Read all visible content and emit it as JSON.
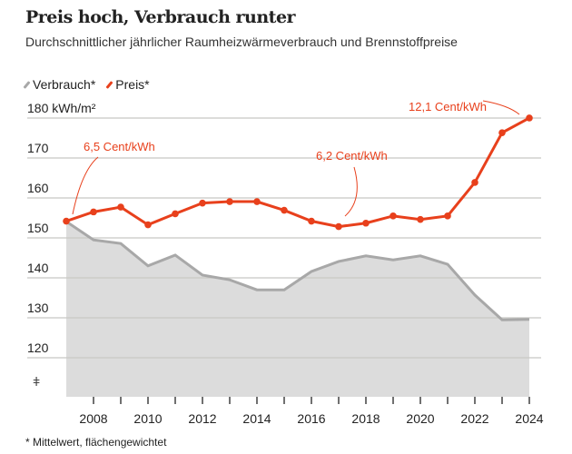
{
  "header": {
    "title": "Preis hoch, Verbrauch runter",
    "subtitle": "Durchschnittlicher jährlicher Raumheizwärmeverbrauch und Brennstoffpreise"
  },
  "footnote": "* Mittelwert, flächengewichtet",
  "colors": {
    "consumption": "#a8a8a8",
    "area": "#dcdcdc",
    "price": "#e8401c",
    "grid": "#c8c8c4"
  },
  "chart_data": {
    "type": "line",
    "title": "Preis hoch, Verbrauch runter",
    "ylabel": "180 kWh/m²",
    "ylim": [
      110,
      180
    ],
    "yticks": [
      {
        "v": 180,
        "label": "180 kWh/m²"
      },
      {
        "v": 170,
        "label": "170"
      },
      {
        "v": 160,
        "label": "160"
      },
      {
        "v": 150,
        "label": "150"
      },
      {
        "v": 140,
        "label": "140"
      },
      {
        "v": 130,
        "label": "130"
      },
      {
        "v": 120,
        "label": "120"
      }
    ],
    "axis_break": "ǂ",
    "x": [
      2007,
      2008,
      2009,
      2010,
      2011,
      2012,
      2013,
      2014,
      2015,
      2016,
      2017,
      2018,
      2019,
      2020,
      2021,
      2022,
      2023,
      2024
    ],
    "xticks": [
      "2008",
      "2010",
      "2012",
      "2014",
      "2016",
      "2018",
      "2020",
      "2022",
      "2024"
    ],
    "legend": [
      "Verbrauch*",
      "Preis*"
    ],
    "series": [
      {
        "name": "Verbrauch*",
        "unit": "kWh/m²",
        "values": [
          154.1,
          149.5,
          148.6,
          143,
          145.7,
          140.7,
          139.5,
          137,
          137,
          141.6,
          144.1,
          145.5,
          144.5,
          145.5,
          143.4,
          135.7,
          129.5,
          129.6
        ]
      },
      {
        "name": "Preis*",
        "unit": "Cent/kWh",
        "values": [
          6.5,
          7.0,
          7.26,
          6.3,
          6.9,
          7.48,
          7.56,
          7.56,
          7.09,
          6.5,
          6.2,
          6.39,
          6.78,
          6.59,
          6.78,
          8.6,
          11.3,
          12.1
        ]
      }
    ],
    "annotations": [
      {
        "year": 2007,
        "text": "6,5 Cent/kWh"
      },
      {
        "year": 2017,
        "text": "6,2 Cent/kWh"
      },
      {
        "year": 2024,
        "text": "12,1 Cent/kWh"
      }
    ]
  }
}
